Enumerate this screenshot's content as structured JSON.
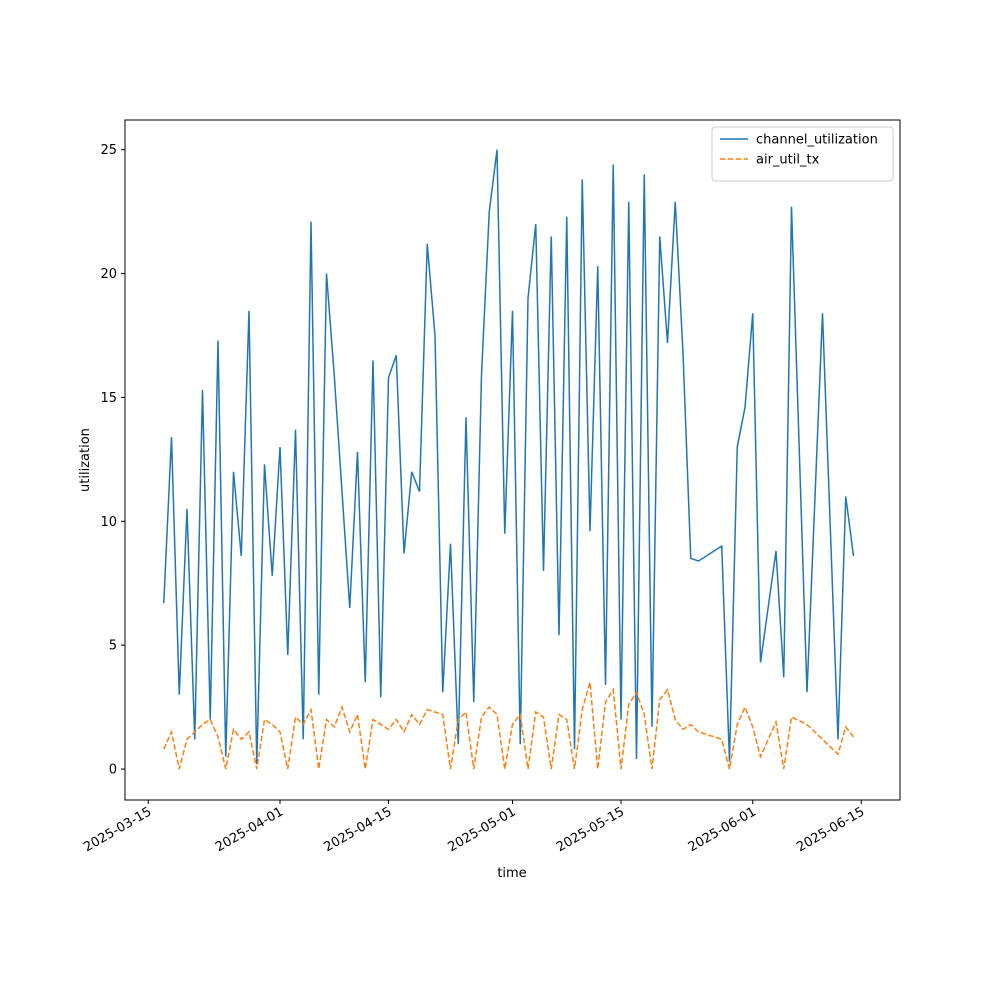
{
  "chart_data": {
    "type": "line",
    "xlabel": "time",
    "ylabel": "utilization",
    "x": [
      "2025-03-17",
      "2025-03-18",
      "2025-03-19",
      "2025-03-20",
      "2025-03-21",
      "2025-03-22",
      "2025-03-23",
      "2025-03-24",
      "2025-03-25",
      "2025-03-26",
      "2025-03-27",
      "2025-03-28",
      "2025-03-29",
      "2025-03-30",
      "2025-03-31",
      "2025-04-01",
      "2025-04-02",
      "2025-04-03",
      "2025-04-04",
      "2025-04-05",
      "2025-04-06",
      "2025-04-07",
      "2025-04-08",
      "2025-04-09",
      "2025-04-10",
      "2025-04-11",
      "2025-04-12",
      "2025-04-13",
      "2025-04-14",
      "2025-04-15",
      "2025-04-16",
      "2025-04-17",
      "2025-04-18",
      "2025-04-19",
      "2025-04-20",
      "2025-04-21",
      "2025-04-22",
      "2025-04-23",
      "2025-04-24",
      "2025-04-25",
      "2025-04-26",
      "2025-04-27",
      "2025-04-28",
      "2025-04-29",
      "2025-04-30",
      "2025-05-01",
      "2025-05-02",
      "2025-05-03",
      "2025-05-04",
      "2025-05-05",
      "2025-05-06",
      "2025-05-07",
      "2025-05-08",
      "2025-05-09",
      "2025-05-10",
      "2025-05-11",
      "2025-05-12",
      "2025-05-13",
      "2025-05-14",
      "2025-05-15",
      "2025-05-16",
      "2025-05-17",
      "2025-05-18",
      "2025-05-19",
      "2025-05-20",
      "2025-05-21",
      "2025-05-22",
      "2025-05-23",
      "2025-05-24",
      "2025-05-25",
      "2025-05-28",
      "2025-05-29",
      "2025-05-30",
      "2025-05-31",
      "2025-06-01",
      "2025-06-02",
      "2025-06-04",
      "2025-06-05",
      "2025-06-06",
      "2025-06-08",
      "2025-06-10",
      "2025-06-12",
      "2025-06-13",
      "2025-06-14"
    ],
    "series": [
      {
        "name": "channel_utilization",
        "color": "#1f77b4",
        "dash": false,
        "values": [
          6.7,
          13.4,
          3.0,
          10.5,
          1.2,
          15.3,
          2.0,
          17.3,
          0.5,
          12.0,
          8.6,
          18.5,
          0.2,
          12.3,
          7.8,
          13.0,
          4.6,
          13.7,
          1.2,
          22.1,
          3.0,
          20.0,
          15.9,
          11.2,
          6.5,
          12.8,
          3.5,
          16.5,
          2.9,
          15.8,
          16.7,
          8.7,
          12.0,
          11.2,
          21.2,
          17.5,
          3.1,
          9.1,
          1.0,
          14.2,
          2.7,
          15.9,
          22.5,
          25.0,
          9.5,
          18.5,
          1.0,
          19.0,
          22.0,
          8.0,
          21.5,
          5.4,
          22.3,
          0.8,
          23.8,
          9.6,
          20.3,
          3.4,
          24.4,
          2.0,
          22.9,
          0.4,
          24.0,
          1.7,
          21.5,
          17.2,
          22.9,
          16.8,
          8.5,
          8.4,
          9.0,
          0.3,
          13.0,
          14.6,
          18.4,
          4.3,
          8.8,
          3.7,
          22.7,
          3.1,
          18.4,
          1.2,
          11.0,
          8.6
        ]
      },
      {
        "name": "air_util_tx",
        "color": "#ff7f0e",
        "dash": true,
        "values": [
          0.8,
          1.5,
          0.0,
          1.2,
          1.5,
          1.8,
          2.0,
          1.3,
          0.0,
          1.6,
          1.2,
          1.5,
          0.0,
          2.0,
          1.8,
          1.5,
          0.0,
          2.1,
          1.8,
          2.4,
          0.0,
          2.0,
          1.7,
          2.5,
          1.5,
          2.2,
          0.0,
          2.0,
          1.8,
          1.6,
          2.0,
          1.5,
          2.2,
          1.8,
          2.4,
          2.3,
          2.2,
          0.0,
          2.0,
          2.3,
          0.0,
          2.1,
          2.5,
          2.2,
          0.0,
          1.8,
          2.2,
          0.0,
          2.3,
          2.1,
          0.0,
          2.2,
          2.0,
          0.0,
          2.4,
          3.5,
          0.0,
          2.7,
          3.2,
          0.0,
          2.6,
          3.1,
          2.2,
          0.0,
          2.8,
          3.2,
          2.0,
          1.6,
          1.8,
          1.5,
          1.2,
          0.0,
          1.8,
          2.5,
          1.7,
          0.5,
          1.9,
          0.0,
          2.1,
          1.8,
          1.2,
          0.6,
          1.7,
          1.3
        ]
      }
    ],
    "xlim": [
      "2025-03-12",
      "2025-06-20"
    ],
    "xticks": [
      "2025-03-15",
      "2025-04-01",
      "2025-04-15",
      "2025-05-01",
      "2025-05-15",
      "2025-06-01",
      "2025-06-15"
    ],
    "ylim": [
      -1.25,
      26.2
    ],
    "yticks": [
      0,
      5,
      10,
      15,
      20,
      25
    ],
    "legend": "upper right"
  }
}
